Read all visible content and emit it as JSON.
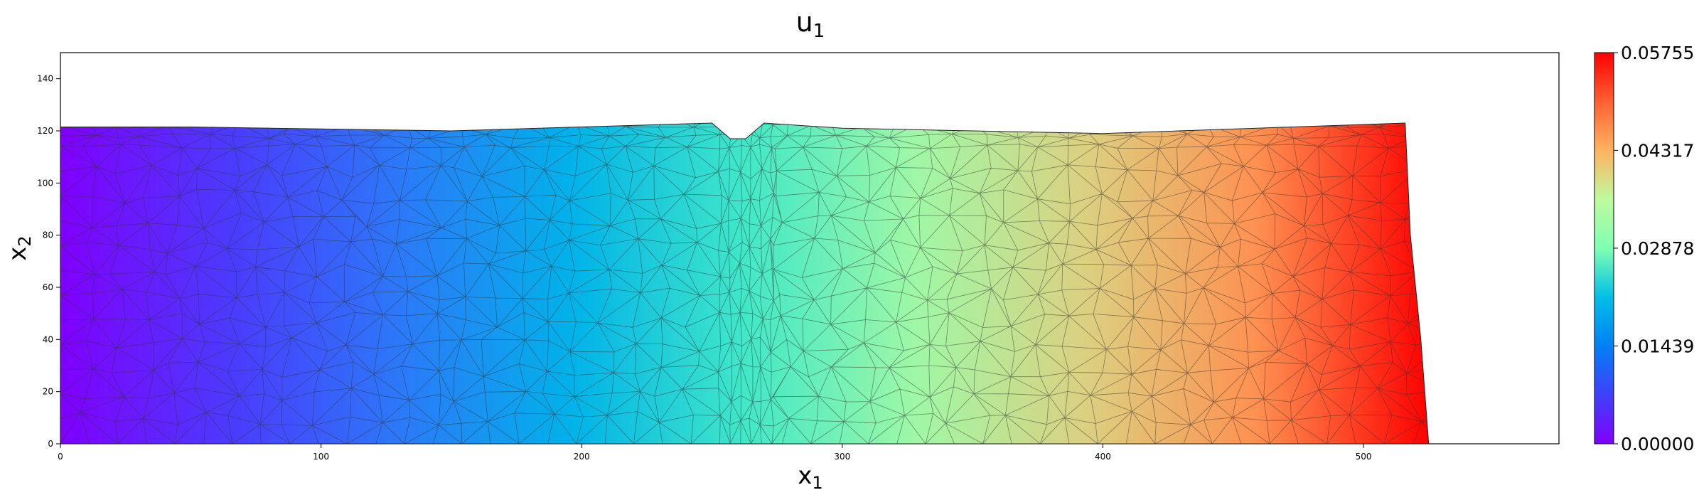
{
  "chart_data": {
    "type": "heatmap",
    "title": "u",
    "title_subscript": "1",
    "xlabel": "x",
    "xlabel_subscript": "1",
    "ylabel": "x",
    "ylabel_subscript": "2",
    "xlim": [
      0,
      575
    ],
    "ylim": [
      0,
      150
    ],
    "xticks": [
      0,
      100,
      200,
      300,
      400,
      500
    ],
    "yticks": [
      0,
      20,
      40,
      60,
      80,
      100,
      120,
      140
    ],
    "colormap": "rainbow",
    "colorbar": {
      "min": 0.0,
      "max": 0.05755,
      "ticks": [
        "0.00000",
        "0.01439",
        "0.02878",
        "0.04317",
        "0.05755"
      ],
      "tick_values": [
        0.0,
        0.01439,
        0.02878,
        0.04317,
        0.05755
      ]
    },
    "domain_outline": [
      [
        0,
        0
      ],
      [
        525,
        0
      ],
      [
        522,
        40
      ],
      [
        518,
        80
      ],
      [
        516,
        123
      ],
      [
        400,
        119
      ],
      [
        300,
        121
      ],
      [
        270,
        123
      ],
      [
        263,
        117
      ],
      [
        257,
        117
      ],
      [
        250,
        123
      ],
      [
        150,
        120
      ],
      [
        50,
        121.5
      ],
      [
        0,
        121.5
      ]
    ],
    "notch_x": [
      250,
      270
    ],
    "field_note": "u1 increases roughly linearly with x1 from 0.00000 at x1=0 to 0.05755 at x1=525, largest at bottom-right",
    "grid": false,
    "mesh": "triangular"
  }
}
